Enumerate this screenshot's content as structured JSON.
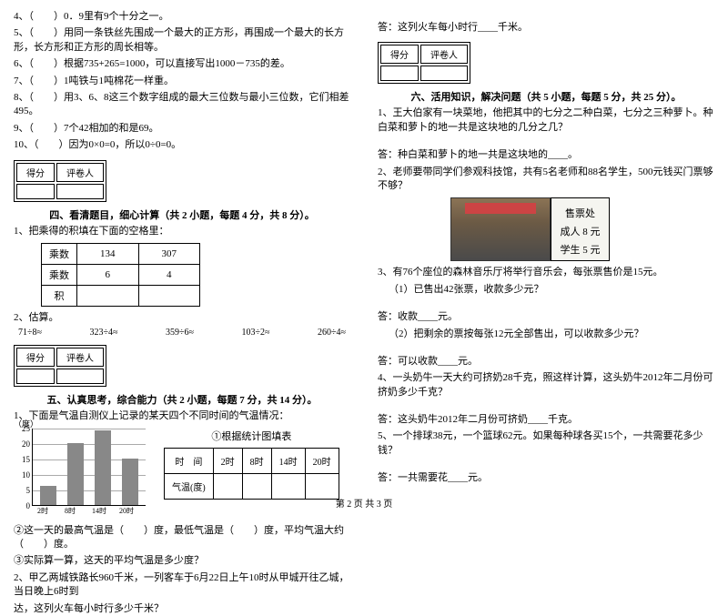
{
  "left": {
    "judge_items": [
      "4、（　　）0．9里有9个十分之一。",
      "5、（　　）用同一条铁丝先围成一个最大的正方形，再围成一个最大的长方形，长方形和正方形的周长相等。",
      "6、（　　）根据735+265=1000，可以直接写出1000－735的差。",
      "7、（　　）1吨铁与1吨棉花一样重。",
      "8、（　　）用3、6、8这三个数字组成的最大三位数与最小三位数，它们相差495。",
      "9、（　　）7个42相加的和是69。",
      "10、（　　）因为0×0=0，所以0÷0=0。"
    ],
    "sec4_title": "四、看清题目，细心计算（共 2 小题，每题 4 分，共 8 分）。",
    "sec4_q1": "1、把乘得的积填在下面的空格里：",
    "table4": {
      "r1": [
        "乘数",
        "134",
        "307"
      ],
      "r2": [
        "乘数",
        "6",
        "4"
      ],
      "r3": [
        "积",
        "",
        ""
      ]
    },
    "sec4_q2": "2、估算。",
    "estimates": [
      "71÷8≈",
      "323÷4≈",
      "359÷6≈",
      "103÷2≈",
      "260÷4≈"
    ],
    "sec5_title": "五、认真思考，综合能力（共 2 小题，每题 7 分，共 14 分）。",
    "sec5_q1": "1、下面是气温自测仪上记录的某天四个不同时间的气温情况：",
    "chart": {
      "title": "①根据统计图填表",
      "y_unit": "（度）",
      "y_ticks": [
        25,
        20,
        15,
        10,
        5,
        0
      ],
      "y_max": 25,
      "x_labels": [
        "2时",
        "8时",
        "14时",
        "20时"
      ],
      "bars": [
        6,
        20,
        24,
        15
      ],
      "bar_color": "#888888",
      "grid_color": "#aaaaaa"
    },
    "minitbl": {
      "r1": [
        "时　间",
        "2时",
        "8时",
        "14时",
        "20时"
      ],
      "r2": [
        "气温(度)",
        "",
        "",
        "",
        ""
      ]
    },
    "sec5_sub2": "②这一天的最高气温是（　　）度，最低气温是（　　）度，平均气温大约（　　）度。",
    "sec5_sub3": "③实际算一算，这天的平均气温是多少度？",
    "sec5_q2a": "2、甲乙两城铁路长960千米，一列客车于6月22日上午10时从甲城开往乙城，当日晚上6时到",
    "sec5_q2b": "达，这列火车每小时行多少千米？"
  },
  "right": {
    "ans_train": "答：这列火车每小时行____千米。",
    "sec6_title": "六、活用知识，解决问题（共 5 小题，每题 5 分，共 25 分）。",
    "q1": "1、王大伯家有一块菜地，他把其中的七分之二种白菜，七分之三种萝卜。种白菜和萝卜的地一共是这块地的几分之几？",
    "a1": "答：种白菜和萝卜的地一共是这块地的____。",
    "q2": "2、老师要带同学们参观科技馆，共有5名老师和88名学生，500元钱买门票够不够？",
    "price": {
      "title": "售票处",
      "adult": "成人 8 元",
      "student": "学生 5 元"
    },
    "q3": "3、有76个座位的森林音乐厅将举行音乐会，每张票售价是15元。",
    "q3_1": "（1）已售出42张票，收款多少元？",
    "a3_1": "答：收款____元。",
    "q3_2": "（2）把剩余的票按每张12元全部售出，可以收款多少元？",
    "a3_2": "答：可以收款____元。",
    "q4": "4、一头奶牛一天大约可挤奶28千克，照这样计算，这头奶牛2012年二月份可挤奶多少千克？",
    "a4": "答：这头奶牛2012年二月份可挤奶____千克。",
    "q5": "5、一个排球38元，一个篮球62元。如果每种球各买15个，一共需要花多少钱？",
    "a5": "答：一共需要花____元。"
  },
  "score_labels": {
    "score": "得分",
    "reviewer": "评卷人"
  },
  "footer": "第 2 页 共 3 页"
}
